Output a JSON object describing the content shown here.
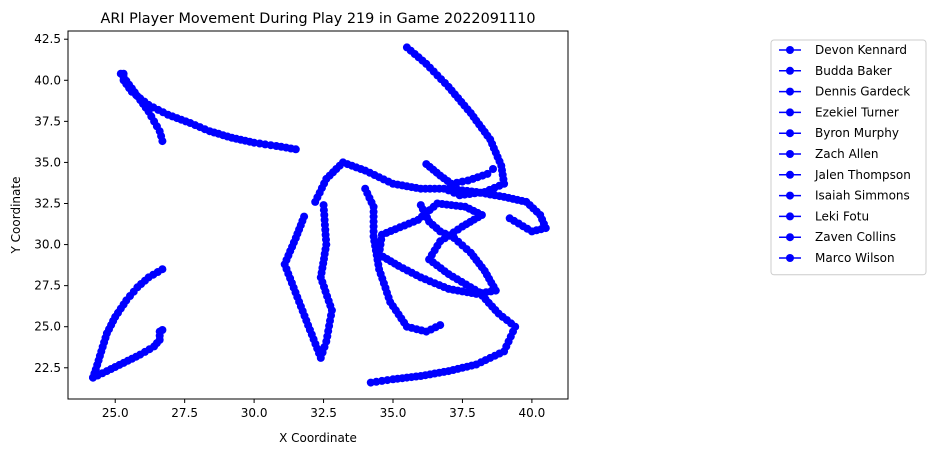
{
  "chart_data": {
    "type": "line",
    "title": "ARI Player Movement During Play 219 in Game 2022091110",
    "xlabel": "X Coordinate",
    "ylabel": "Y Coordinate",
    "xlim": [
      23.3,
      41.3
    ],
    "ylim": [
      20.6,
      43.0
    ],
    "xticks": [
      "25.0",
      "27.5",
      "30.0",
      "32.5",
      "35.0",
      "37.5",
      "40.0"
    ],
    "yticks": [
      "22.5",
      "25.0",
      "27.5",
      "30.0",
      "32.5",
      "35.0",
      "37.5",
      "40.0",
      "42.5"
    ],
    "grid": false,
    "legend_position": "outside-right",
    "series_color": "#0000ff",
    "marker": "circle",
    "series": [
      {
        "name": "Devon Kennard",
        "points": [
          [
            26.7,
            36.3
          ],
          [
            26.6,
            36.9
          ],
          [
            26.4,
            37.5
          ],
          [
            26.2,
            38.1
          ],
          [
            25.9,
            38.8
          ],
          [
            25.6,
            39.5
          ],
          [
            25.3,
            40.2
          ],
          [
            25.3,
            40.4
          ]
        ]
      },
      {
        "name": "Budda Baker",
        "points": [
          [
            31.5,
            35.8
          ],
          [
            30.8,
            36.0
          ],
          [
            30.0,
            36.2
          ],
          [
            29.2,
            36.5
          ],
          [
            28.4,
            36.9
          ],
          [
            27.7,
            37.4
          ],
          [
            26.9,
            37.9
          ],
          [
            26.2,
            38.5
          ],
          [
            25.6,
            39.3
          ],
          [
            25.3,
            40.0
          ],
          [
            25.2,
            40.4
          ]
        ]
      },
      {
        "name": "Dennis Gardeck",
        "points": [
          [
            26.7,
            28.5
          ],
          [
            26.2,
            28.0
          ],
          [
            25.8,
            27.4
          ],
          [
            25.4,
            26.6
          ],
          [
            25.0,
            25.6
          ],
          [
            24.7,
            24.6
          ],
          [
            24.5,
            23.5
          ],
          [
            24.3,
            22.4
          ],
          [
            24.2,
            21.9
          ]
        ]
      },
      {
        "name": "Ezekiel Turner",
        "points": [
          [
            24.2,
            21.9
          ],
          [
            24.7,
            22.3
          ],
          [
            25.3,
            22.8
          ],
          [
            25.9,
            23.3
          ],
          [
            26.4,
            23.8
          ],
          [
            26.6,
            24.2
          ],
          [
            26.6,
            24.7
          ],
          [
            26.7,
            24.8
          ]
        ]
      },
      {
        "name": "Byron Murphy",
        "points": [
          [
            35.5,
            42.0
          ],
          [
            36.2,
            41.0
          ],
          [
            37.0,
            39.6
          ],
          [
            37.8,
            38.0
          ],
          [
            38.5,
            36.4
          ],
          [
            38.9,
            34.8
          ],
          [
            39.0,
            33.7
          ],
          [
            38.3,
            33.2
          ],
          [
            37.4,
            33.0
          ],
          [
            37.0,
            33.3
          ]
        ]
      },
      {
        "name": "Zach Allen",
        "points": [
          [
            32.2,
            32.6
          ],
          [
            32.6,
            34.0
          ],
          [
            33.2,
            35.0
          ],
          [
            34.0,
            34.5
          ],
          [
            35.0,
            33.7
          ],
          [
            36.0,
            33.4
          ],
          [
            37.0,
            33.4
          ],
          [
            38.0,
            33.2
          ],
          [
            39.0,
            32.9
          ],
          [
            39.8,
            32.6
          ],
          [
            40.3,
            31.8
          ],
          [
            40.5,
            31.0
          ],
          [
            40.0,
            30.8
          ],
          [
            39.2,
            31.6
          ]
        ]
      },
      {
        "name": "Jalen Thompson",
        "points": [
          [
            31.8,
            31.7
          ],
          [
            31.5,
            30.4
          ],
          [
            31.1,
            28.8
          ],
          [
            32.4,
            23.1
          ],
          [
            32.6,
            24.1
          ],
          [
            32.8,
            26.0
          ],
          [
            32.4,
            28.0
          ],
          [
            32.6,
            30.0
          ],
          [
            32.5,
            32.4
          ]
        ]
      },
      {
        "name": "Isaiah Simmons",
        "points": [
          [
            34.0,
            33.4
          ],
          [
            34.3,
            32.3
          ],
          [
            34.3,
            30.5
          ],
          [
            34.5,
            28.5
          ],
          [
            34.9,
            26.5
          ],
          [
            35.5,
            25.0
          ],
          [
            36.2,
            24.7
          ],
          [
            36.7,
            25.1
          ]
        ]
      },
      {
        "name": "Leki Fotu",
        "points": [
          [
            34.2,
            21.6
          ],
          [
            35.0,
            21.8
          ],
          [
            36.0,
            22.0
          ],
          [
            37.0,
            22.3
          ],
          [
            38.0,
            22.7
          ],
          [
            39.0,
            23.5
          ],
          [
            39.4,
            25.0
          ],
          [
            38.8,
            25.8
          ],
          [
            38.1,
            27.1
          ],
          [
            37.0,
            28.2
          ],
          [
            36.3,
            29.1
          ],
          [
            36.7,
            30.2
          ],
          [
            37.5,
            31.1
          ],
          [
            38.2,
            31.8
          ],
          [
            37.6,
            32.3
          ],
          [
            36.6,
            32.5
          ],
          [
            35.9,
            31.5
          ],
          [
            34.6,
            30.6
          ],
          [
            34.5,
            29.4
          ]
        ]
      },
      {
        "name": "Zaven Collins",
        "points": [
          [
            34.5,
            29.4
          ],
          [
            35.2,
            28.7
          ],
          [
            36.0,
            28.0
          ],
          [
            37.0,
            27.3
          ],
          [
            38.0,
            27.0
          ],
          [
            38.7,
            27.2
          ],
          [
            38.3,
            28.4
          ],
          [
            37.8,
            29.5
          ],
          [
            37.2,
            30.4
          ],
          [
            36.7,
            30.8
          ],
          [
            36.3,
            31.4
          ],
          [
            36.0,
            32.4
          ]
        ]
      },
      {
        "name": "Marco Wilson",
        "points": [
          [
            36.2,
            34.9
          ],
          [
            36.7,
            34.2
          ],
          [
            37.1,
            33.7
          ],
          [
            37.7,
            33.9
          ],
          [
            38.4,
            34.3
          ],
          [
            38.6,
            34.6
          ]
        ]
      }
    ]
  }
}
